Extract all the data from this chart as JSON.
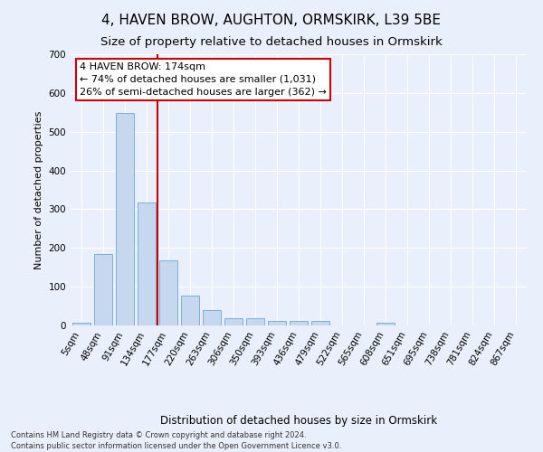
{
  "title1": "4, HAVEN BROW, AUGHTON, ORMSKIRK, L39 5BE",
  "title2": "Size of property relative to detached houses in Ormskirk",
  "xlabel": "Distribution of detached houses by size in Ormskirk",
  "ylabel": "Number of detached properties",
  "footnote": "Contains HM Land Registry data © Crown copyright and database right 2024.\nContains public sector information licensed under the Open Government Licence v3.0.",
  "bar_labels": [
    "5sqm",
    "48sqm",
    "91sqm",
    "134sqm",
    "177sqm",
    "220sqm",
    "263sqm",
    "306sqm",
    "350sqm",
    "393sqm",
    "436sqm",
    "479sqm",
    "522sqm",
    "565sqm",
    "608sqm",
    "651sqm",
    "695sqm",
    "738sqm",
    "781sqm",
    "824sqm",
    "867sqm"
  ],
  "bar_values": [
    8,
    185,
    548,
    318,
    168,
    77,
    40,
    18,
    18,
    12,
    12,
    12,
    0,
    0,
    8,
    0,
    0,
    0,
    0,
    0,
    0
  ],
  "bar_color": "#c5d8f0",
  "bar_edge_color": "#7bafd4",
  "annotation_text": "4 HAVEN BROW: 174sqm\n← 74% of detached houses are smaller (1,031)\n26% of semi-detached houses are larger (362) →",
  "vline_color": "#cc0000",
  "annotation_box_color": "#ffffff",
  "annotation_box_edge_color": "#cc0000",
  "ylim": [
    0,
    700
  ],
  "background_color": "#eaf0fb",
  "grid_color": "#ffffff",
  "title1_fontsize": 11,
  "title2_fontsize": 9.5,
  "annotation_fontsize": 8,
  "tick_fontsize": 7.5,
  "ylabel_fontsize": 8,
  "xlabel_fontsize": 8.5,
  "footnote_fontsize": 6
}
